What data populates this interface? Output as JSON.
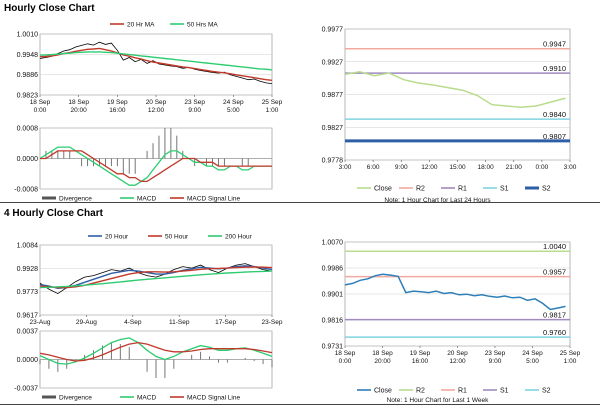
{
  "sections": {
    "hourly_title": "Hourly Close Chart",
    "four_hourly_title": "4 Hourly Close Chart"
  },
  "chart_data": [
    {
      "id": "hourly-price",
      "type": "line",
      "legend": [
        "20 Hr MA",
        "50 Hrs MA"
      ],
      "y_ticks": [
        "1.0010",
        "0.9948",
        "0.9886",
        "0.9823"
      ],
      "ylim": [
        0.9823,
        1.001
      ],
      "x_ticks": [
        "18 Sep\n0:00",
        "18 Sep\n20:00",
        "19 Sep\n16:00",
        "20 Sep\n12:00",
        "23 Sep\n9:00",
        "24 Sep\n5:00",
        "25 Sep\n1:00"
      ],
      "series": [
        {
          "name": "Close",
          "color": "#000000",
          "values": [
            0.9935,
            0.9938,
            0.9942,
            0.995,
            0.9958,
            0.9962,
            0.997,
            0.9975,
            0.998,
            0.9976,
            0.9985,
            0.9978,
            0.9982,
            0.996,
            0.993,
            0.9938,
            0.9925,
            0.9932,
            0.992,
            0.9928,
            0.9918,
            0.9915,
            0.9912,
            0.991,
            0.9905,
            0.9908,
            0.9902,
            0.9898,
            0.9895,
            0.9892,
            0.989,
            0.9893,
            0.9885,
            0.988,
            0.9875,
            0.987,
            0.9872,
            0.9865,
            0.986,
            0.9858
          ]
        },
        {
          "name": "20 Hr MA",
          "color": "#c0392b",
          "values": [
            0.994,
            0.9941,
            0.9943,
            0.9946,
            0.995,
            0.9953,
            0.9957,
            0.996,
            0.9963,
            0.9964,
            0.9966,
            0.9962,
            0.9958,
            0.9952,
            0.9946,
            0.9942,
            0.9937,
            0.9933,
            0.9928,
            0.9924,
            0.9921,
            0.9918,
            0.9915,
            0.9912,
            0.9909,
            0.9907,
            0.9904,
            0.9901,
            0.9898,
            0.9895,
            0.9893,
            0.9891,
            0.9888,
            0.9885,
            0.9882,
            0.9879,
            0.9876,
            0.9873,
            0.987,
            0.9868
          ]
        },
        {
          "name": "50 Hrs MA",
          "color": "#2ecc71",
          "values": [
            0.9945,
            0.9946,
            0.9947,
            0.9948,
            0.995,
            0.9951,
            0.9953,
            0.9954,
            0.9955,
            0.9955,
            0.9955,
            0.9954,
            0.9953,
            0.9951,
            0.9949,
            0.9947,
            0.9945,
            0.9943,
            0.9941,
            0.9939,
            0.9937,
            0.9935,
            0.9933,
            0.9931,
            0.9929,
            0.9927,
            0.9925,
            0.9923,
            0.9921,
            0.9919,
            0.9917,
            0.9915,
            0.9913,
            0.9911,
            0.9909,
            0.9907,
            0.9905,
            0.9903,
            0.9902,
            0.99
          ]
        }
      ]
    },
    {
      "id": "hourly-macd",
      "type": "line",
      "legend": [
        "Divergence",
        "MACD",
        "MACD Signal Line"
      ],
      "y_ticks": [
        "0.0008",
        "0.0000",
        "-0.0008"
      ],
      "ylim": [
        -0.0008,
        0.0008
      ],
      "macd": [
        0.0,
        0.0001,
        0.0002,
        0.0003,
        0.0003,
        0.0003,
        0.0002,
        0.0001,
        0.0,
        -0.0001,
        -0.0002,
        -0.0003,
        -0.0004,
        -0.0005,
        -0.0006,
        -0.0007,
        -0.0007,
        -0.0006,
        -0.0005,
        -0.0003,
        -0.0001,
        0.0001,
        0.0002,
        0.0002,
        0.0001,
        0.0,
        -0.0001,
        -0.0001,
        -0.0002,
        -0.0002,
        -0.0003,
        -0.0003,
        -0.0002,
        -0.0002,
        -0.0003,
        -0.0003,
        -0.0002,
        -0.0002,
        -0.0002,
        -0.0002
      ],
      "signal": [
        0.0,
        0.0,
        0.0001,
        0.0002,
        0.0002,
        0.0002,
        0.0002,
        0.0002,
        0.0001,
        0.0,
        -0.0001,
        -0.0002,
        -0.0003,
        -0.0004,
        -0.0004,
        -0.0005,
        -0.0005,
        -0.0006,
        -0.0006,
        -0.0005,
        -0.0004,
        -0.0003,
        -0.0002,
        -0.0001,
        0.0,
        0.0,
        0.0,
        -0.0001,
        -0.0001,
        -0.0001,
        -0.0002,
        -0.0002,
        -0.0002,
        -0.0002,
        -0.0002,
        -0.0002,
        -0.0002,
        -0.0002,
        -0.0002,
        -0.0002
      ]
    },
    {
      "id": "hourly-pivots",
      "type": "line",
      "y_ticks": [
        "0.9977",
        "0.9927",
        "0.9877",
        "0.9827",
        "0.9778"
      ],
      "ylim": [
        0.9778,
        0.9977
      ],
      "x_ticks": [
        "3:00",
        "6:00",
        "9:00",
        "12:00",
        "15:00",
        "18:00",
        "21:00",
        "0:00",
        "3:00"
      ],
      "levels": [
        {
          "name": "R2",
          "value": 0.9947,
          "label": "0.9947",
          "color": "#f1a9a0"
        },
        {
          "name": "R1",
          "value": 0.991,
          "label": "0.9910",
          "color": "#a08ac0"
        },
        {
          "name": "S1",
          "value": 0.984,
          "label": "0.9840",
          "color": "#7fd3e0"
        },
        {
          "name": "S2",
          "value": 0.9807,
          "label": "0.9807",
          "color": "#2e5ea6"
        }
      ],
      "close": [
        0.9908,
        0.9912,
        0.9906,
        0.991,
        0.99,
        0.9895,
        0.9892,
        0.9888,
        0.9884,
        0.9876,
        0.9862,
        0.986,
        0.9858,
        0.986,
        0.9866,
        0.9872
      ],
      "close_color": "#b8dc8c",
      "legend": [
        "Close",
        "R2",
        "R1",
        "S1",
        "S2"
      ],
      "note": "Note: 1 Hour Chart for Last 24 Hours"
    },
    {
      "id": "four-hourly-price",
      "type": "line",
      "legend": [
        "20 Hour",
        "50 Hour",
        "200 Hour"
      ],
      "y_ticks": [
        "1.0084",
        "0.9928",
        "0.9773",
        "0.9617"
      ],
      "ylim": [
        0.9617,
        1.0084
      ],
      "x_ticks": [
        "23-Aug",
        "29-Aug",
        "4-Sep",
        "11-Sep",
        "17-Sep",
        "23-Sep"
      ],
      "series": [
        {
          "name": "Close",
          "color": "#000000",
          "values": [
            0.983,
            0.979,
            0.976,
            0.98,
            0.984,
            0.987,
            0.988,
            0.99,
            0.992,
            0.991,
            0.993,
            0.99,
            0.988,
            0.987,
            0.989,
            0.992,
            0.994,
            0.993,
            0.995,
            0.992,
            0.99,
            0.993,
            0.995,
            0.996,
            0.994,
            0.992,
            0.991
          ]
        },
        {
          "name": "20 Hour",
          "color": "#2e5ea6",
          "values": [
            0.982,
            0.981,
            0.9795,
            0.98,
            0.9815,
            0.9835,
            0.9855,
            0.9875,
            0.9895,
            0.9905,
            0.9915,
            0.991,
            0.99,
            0.989,
            0.989,
            0.99,
            0.9915,
            0.9925,
            0.9935,
            0.993,
            0.9925,
            0.993,
            0.994,
            0.9945,
            0.994,
            0.993,
            0.992
          ]
        },
        {
          "name": "50 Hour",
          "color": "#c0392b",
          "values": [
            0.981,
            0.9805,
            0.98,
            0.98,
            0.9805,
            0.9815,
            0.983,
            0.9845,
            0.986,
            0.9875,
            0.989,
            0.99,
            0.9905,
            0.9905,
            0.9903,
            0.9905,
            0.991,
            0.9915,
            0.9922,
            0.9926,
            0.9928,
            0.993,
            0.9933,
            0.9936,
            0.9937,
            0.9936,
            0.9933
          ]
        },
        {
          "name": "200 Hour",
          "color": "#2ecc71",
          "values": [
            0.98,
            0.9802,
            0.9805,
            0.9808,
            0.9812,
            0.9816,
            0.9821,
            0.9826,
            0.9832,
            0.9838,
            0.9844,
            0.985,
            0.9855,
            0.986,
            0.9865,
            0.987,
            0.9875,
            0.988,
            0.9885,
            0.9889,
            0.9893,
            0.9897,
            0.99,
            0.9903,
            0.9906,
            0.9908,
            0.991
          ]
        }
      ]
    },
    {
      "id": "four-hourly-macd",
      "type": "line",
      "legend": [
        "Divergence",
        "MACD",
        "MACD Signal Line"
      ],
      "y_ticks": [
        "0.0037",
        "0.0000",
        "-0.0037"
      ],
      "ylim": [
        -0.0037,
        0.0037
      ],
      "macd": [
        0.0005,
        0.0,
        -0.0005,
        -0.0006,
        -0.0003,
        0.0002,
        0.0008,
        0.0015,
        0.0022,
        0.0026,
        0.0028,
        0.0022,
        0.0012,
        0.0004,
        0.0,
        0.0004,
        0.001,
        0.0014,
        0.0018,
        0.0016,
        0.0012,
        0.0012,
        0.0014,
        0.0015,
        0.0012,
        0.0008,
        0.0004
      ],
      "signal": [
        0.0008,
        0.0006,
        0.0003,
        0.0,
        -0.0002,
        -0.0001,
        0.0002,
        0.0006,
        0.0011,
        0.0016,
        0.002,
        0.0022,
        0.002,
        0.0016,
        0.0012,
        0.001,
        0.001,
        0.0011,
        0.0013,
        0.0014,
        0.0014,
        0.0014,
        0.0014,
        0.0014,
        0.0013,
        0.0011,
        0.0009
      ]
    },
    {
      "id": "four-hourly-pivots",
      "type": "line",
      "y_ticks": [
        "1.0070",
        "0.9986",
        "0.9901",
        "0.9816",
        "0.9731"
      ],
      "ylim": [
        0.9731,
        1.007
      ],
      "x_ticks": [
        "18 Sep\n0:00",
        "18 Sep\n20:00",
        "19 Sep\n16:00",
        "20 Sep\n12:00",
        "23 Sep\n9:00",
        "24 Sep\n5:00",
        "25 Sep\n1:00"
      ],
      "levels": [
        {
          "name": "R2",
          "value": 1.004,
          "label": "1.0040",
          "color": "#b8dc8c"
        },
        {
          "name": "R1",
          "value": 0.9957,
          "label": "0.9957",
          "color": "#f1a9a0"
        },
        {
          "name": "S1",
          "value": 0.9817,
          "label": "0.9817",
          "color": "#a08ac0"
        },
        {
          "name": "S2",
          "value": 0.976,
          "label": "0.9760",
          "color": "#7fd3e0"
        }
      ],
      "close": [
        0.993,
        0.9935,
        0.9945,
        0.995,
        0.996,
        0.9965,
        0.9962,
        0.9958,
        0.9905,
        0.991,
        0.9908,
        0.9905,
        0.991,
        0.9902,
        0.9905,
        0.9898,
        0.99,
        0.9895,
        0.9898,
        0.9893,
        0.989,
        0.9894,
        0.9888,
        0.989,
        0.988,
        0.9885,
        0.987,
        0.985,
        0.9855,
        0.986
      ],
      "close_color": "#2e7fb8",
      "legend": [
        "Close",
        "R2",
        "R1",
        "S1",
        "S2"
      ],
      "note": "Note: 1 Hour Chart for Last 1 Week"
    }
  ]
}
